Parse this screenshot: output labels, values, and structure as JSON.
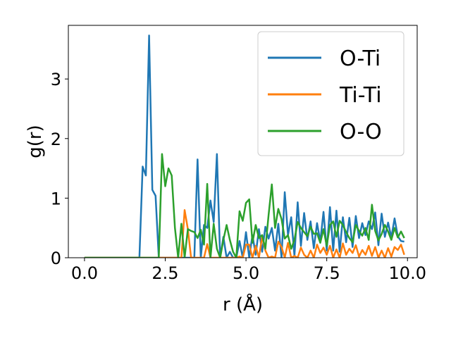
{
  "chart_data": {
    "type": "line",
    "xlabel": "r (Å)",
    "ylabel": "g(r)",
    "xlim": [
      -0.5,
      10.3
    ],
    "ylim": [
      0,
      3.9
    ],
    "x_ticks": [
      0.0,
      2.5,
      5.0,
      7.5,
      10.0
    ],
    "x_tick_labels": [
      "0.0",
      "2.5",
      "5.0",
      "7.5",
      "10.0"
    ],
    "y_ticks": [
      0,
      1,
      2,
      3
    ],
    "y_tick_labels": [
      "0",
      "1",
      "2",
      "3"
    ],
    "grid": false,
    "legend_position": "top-right",
    "x": [
      0.0,
      0.1,
      0.2,
      0.3,
      0.4,
      0.5,
      0.6,
      0.7,
      0.8,
      0.9,
      1.0,
      1.1,
      1.2,
      1.3,
      1.4,
      1.5,
      1.6,
      1.7,
      1.8,
      1.9,
      2.0,
      2.1,
      2.2,
      2.3,
      2.4,
      2.5,
      2.6,
      2.7,
      2.8,
      2.9,
      3.0,
      3.1,
      3.2,
      3.3,
      3.4,
      3.5,
      3.6,
      3.7,
      3.8,
      3.9,
      4.0,
      4.1,
      4.2,
      4.3,
      4.4,
      4.5,
      4.6,
      4.7,
      4.8,
      4.9,
      5.0,
      5.1,
      5.2,
      5.3,
      5.4,
      5.5,
      5.6,
      5.7,
      5.8,
      5.9,
      6.0,
      6.1,
      6.2,
      6.3,
      6.4,
      6.5,
      6.6,
      6.7,
      6.8,
      6.9,
      7.0,
      7.1,
      7.2,
      7.3,
      7.4,
      7.5,
      7.6,
      7.7,
      7.8,
      7.9,
      8.0,
      8.1,
      8.2,
      8.3,
      8.4,
      8.5,
      8.6,
      8.7,
      8.8,
      8.9,
      9.0,
      9.1,
      9.2,
      9.3,
      9.4,
      9.5,
      9.6,
      9.7,
      9.8,
      9.9
    ],
    "series": [
      {
        "name": "O-Ti",
        "color": "#1f77b4",
        "values": [
          0,
          0,
          0,
          0,
          0,
          0,
          0,
          0,
          0,
          0,
          0,
          0,
          0,
          0,
          0,
          0,
          0,
          0,
          1.53,
          1.38,
          3.73,
          1.14,
          1.04,
          0,
          0,
          0,
          0,
          0,
          0,
          0,
          0,
          0,
          0,
          0,
          0.0,
          1.65,
          0.0,
          0.55,
          0.5,
          0.96,
          0.6,
          1.74,
          0.0,
          0.35,
          0.0,
          0.1,
          0.0,
          0.0,
          0.28,
          0.0,
          0.43,
          0.0,
          0.38,
          0.05,
          0.48,
          0.1,
          0.52,
          0.32,
          0.5,
          0.12,
          0.57,
          0.0,
          1.1,
          0.38,
          0.68,
          0.03,
          0.93,
          0.2,
          0.75,
          0.3,
          0.61,
          0.16,
          0.58,
          0.27,
          0.77,
          0.12,
          0.85,
          0.12,
          0.79,
          0.1,
          0.68,
          0.26,
          0.67,
          0.18,
          0.7,
          0.33,
          0.58,
          0.38,
          0.61,
          0.48,
          0.76,
          0.21,
          0.74,
          0.35,
          0.59,
          0.34,
          0.66,
          0.36,
          0.28,
          0.27
        ]
      },
      {
        "name": "Ti-Ti",
        "color": "#ff7f0e",
        "values": [
          0,
          0,
          0,
          0,
          0,
          0,
          0,
          0,
          0,
          0,
          0,
          0,
          0,
          0,
          0,
          0,
          0,
          0,
          0,
          0,
          0,
          0,
          0,
          0,
          0,
          0,
          0,
          0,
          0,
          0,
          0.0,
          0.8,
          0.48,
          0.0,
          0.0,
          0.0,
          0.0,
          0.0,
          0.23,
          0.0,
          0.0,
          0.0,
          0.0,
          0.0,
          0.0,
          0.0,
          0.0,
          0.0,
          0.02,
          0.0,
          0.22,
          0.22,
          0.0,
          0.2,
          0.0,
          0.35,
          0.12,
          0.0,
          0.02,
          0.0,
          0.27,
          0.18,
          0.0,
          0.25,
          0.0,
          0.03,
          0.0,
          0.17,
          0.05,
          0.0,
          0.12,
          0.0,
          0.22,
          0.08,
          0.17,
          0.05,
          0.2,
          0.0,
          0.14,
          0.0,
          0.24,
          0.05,
          0.15,
          0.08,
          0.21,
          0.02,
          0.13,
          0.05,
          0.2,
          0.03,
          0.18,
          0.0,
          0.12,
          0.0,
          0.16,
          0.02,
          0.18,
          0.13,
          0.22,
          0.05
        ]
      },
      {
        "name": "O-O",
        "color": "#2ca02c",
        "values": [
          0,
          0,
          0,
          0,
          0,
          0,
          0,
          0,
          0,
          0,
          0,
          0,
          0,
          0,
          0,
          0,
          0,
          0,
          0,
          0,
          0,
          0,
          0,
          0,
          1.74,
          1.2,
          1.5,
          1.38,
          0.5,
          0.0,
          0.57,
          0.0,
          0.48,
          0.45,
          0.43,
          0.33,
          0.47,
          0.22,
          1.24,
          0.0,
          0.57,
          0.15,
          0.0,
          0.3,
          0.55,
          0.3,
          0.1,
          0.0,
          0.78,
          0.62,
          0.92,
          0.98,
          0.25,
          0.55,
          0.33,
          0.38,
          0.15,
          0.72,
          1.23,
          0.5,
          0.82,
          0.65,
          0.32,
          0.38,
          0.15,
          0.3,
          0.6,
          0.5,
          0.43,
          0.36,
          0.52,
          0.4,
          0.41,
          0.25,
          0.48,
          0.2,
          0.55,
          0.61,
          0.35,
          0.62,
          0.55,
          0.43,
          0.33,
          0.26,
          0.55,
          0.45,
          0.37,
          0.5,
          0.3,
          0.89,
          0.45,
          0.29,
          0.4,
          0.55,
          0.44,
          0.3,
          0.5,
          0.34,
          0.44,
          0.33
        ]
      }
    ]
  }
}
